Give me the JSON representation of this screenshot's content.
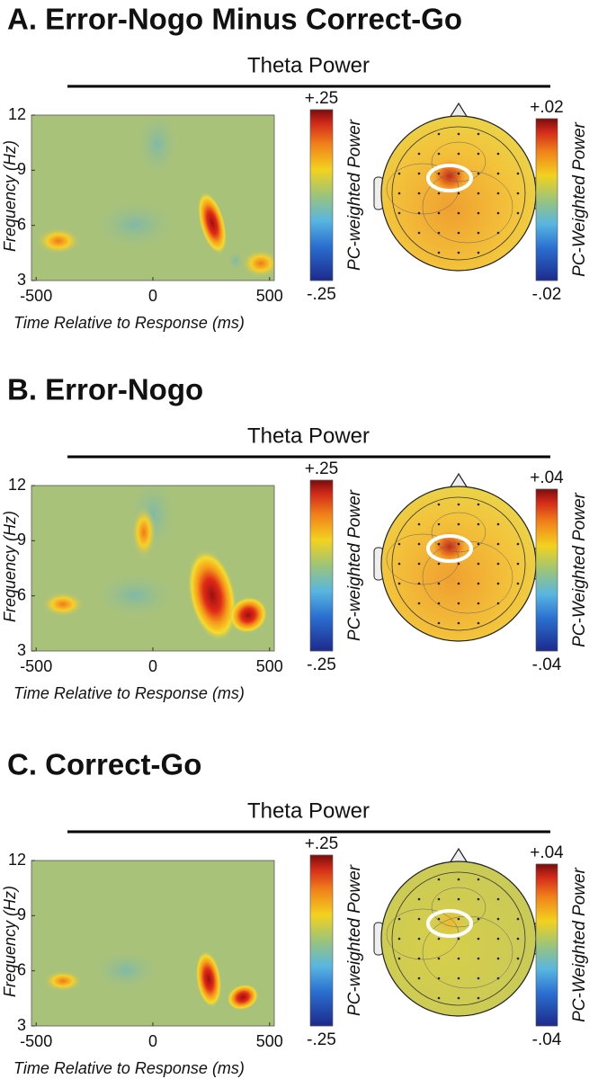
{
  "panels": [
    {
      "title": "A. Error-Nogo Minus Correct-Go",
      "subtitle": "Theta Power"
    },
    {
      "title": "B. Error-Nogo",
      "subtitle": "Theta Power"
    },
    {
      "title": "C. Correct-Go",
      "subtitle": "Theta Power"
    }
  ],
  "chart_data": [
    {
      "type": "heatmap",
      "xlabel": "Time Relative to Response (ms)",
      "ylabel": "Frequency (Hz)",
      "xlim": [
        -520,
        520
      ],
      "xticks": [
        -500,
        0,
        500
      ],
      "ylim": [
        3,
        12
      ],
      "yticks": [
        3,
        6,
        9,
        12
      ],
      "colorbar_label": "PC-weighted Power",
      "clim": [
        -0.25,
        0.25
      ],
      "cticks": [
        {
          "value": 0.25,
          "label": "+.25"
        },
        {
          "value": -0.25,
          "label": "-.25"
        }
      ]
    },
    {
      "type": "topomap",
      "colorbar_label": "PC-Weighted Power",
      "clim": [
        -0.02,
        0.02
      ],
      "cticks": [
        {
          "value": 0.02,
          "label": "+.02"
        },
        {
          "value": -0.02,
          "label": "-.02"
        }
      ]
    },
    {
      "type": "heatmap",
      "xlabel": "Time Relative to Response (ms)",
      "ylabel": "Frequency (Hz)",
      "xlim": [
        -520,
        520
      ],
      "xticks": [
        -500,
        0,
        500
      ],
      "ylim": [
        3,
        12
      ],
      "yticks": [
        3,
        6,
        9,
        12
      ],
      "colorbar_label": "PC-weighted Power",
      "clim": [
        -0.25,
        0.25
      ],
      "cticks": [
        {
          "value": 0.25,
          "label": "+.25"
        },
        {
          "value": -0.25,
          "label": "-.25"
        }
      ]
    },
    {
      "type": "topomap",
      "colorbar_label": "PC-Weighted Power",
      "clim": [
        -0.04,
        0.04
      ],
      "cticks": [
        {
          "value": 0.04,
          "label": "+.04"
        },
        {
          "value": -0.04,
          "label": "-.04"
        }
      ]
    },
    {
      "type": "heatmap",
      "xlabel": "Time Relative to Response (ms)",
      "ylabel": "Frequency (Hz)",
      "xlim": [
        -520,
        520
      ],
      "xticks": [
        -500,
        0,
        500
      ],
      "ylim": [
        3,
        12
      ],
      "yticks": [
        3,
        6,
        9,
        12
      ],
      "colorbar_label": "PC-weighted Power",
      "clim": [
        -0.25,
        0.25
      ],
      "cticks": [
        {
          "value": 0.25,
          "label": "+.25"
        },
        {
          "value": -0.25,
          "label": "-.25"
        }
      ]
    },
    {
      "type": "topomap",
      "colorbar_label": "PC-Weighted Power",
      "clim": [
        -0.04,
        0.04
      ],
      "cticks": [
        {
          "value": 0.04,
          "label": "+.04"
        },
        {
          "value": -0.04,
          "label": "-.04"
        }
      ]
    }
  ]
}
